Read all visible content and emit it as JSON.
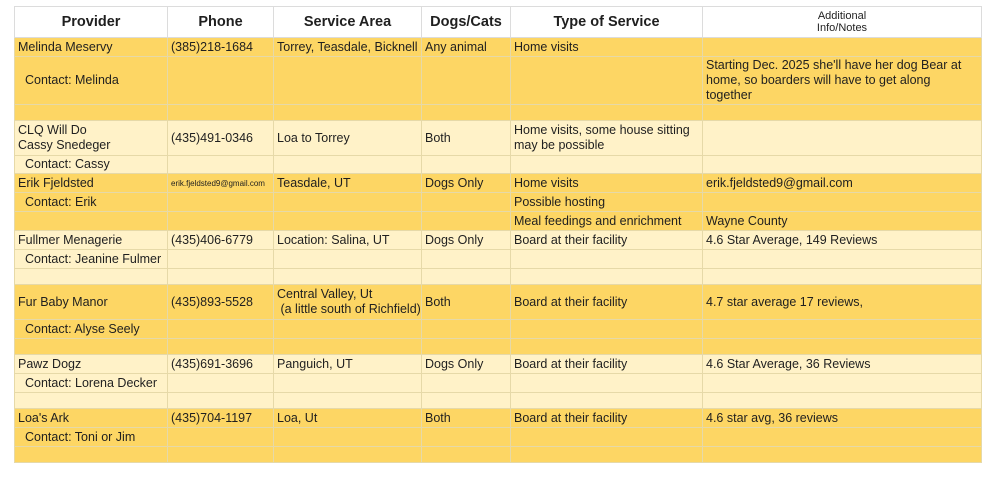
{
  "header": {
    "provider": "Provider",
    "phone": "Phone",
    "service_area": "Service Area",
    "dogs_cats": "Dogs/Cats",
    "type_of_service": "Type of Service",
    "notes_line1": "Additional",
    "notes_line2": "Info/Notes"
  },
  "rows": [
    {
      "shade": "dark",
      "h": 19,
      "provider": "Melinda Meservy",
      "phone": "(385)218-1684",
      "area": "Torrey, Teasdale, Bicknell",
      "pets": "Any animal",
      "service": "Home visits",
      "notes": ""
    },
    {
      "shade": "dark",
      "h": 48,
      "provider": "Contact: Melinda",
      "indent": true,
      "phone": "",
      "area": "",
      "pets": "",
      "service": "",
      "notes": "Starting Dec. 2025 she'll have her dog Bear at home, so boarders will have to get along together"
    },
    {
      "shade": "dark",
      "h": 16,
      "provider": "",
      "phone": "",
      "area": "",
      "pets": "",
      "service": "",
      "notes": ""
    },
    {
      "shade": "light",
      "h": 35,
      "provider": "CLQ Will Do\nCassy Snedeger",
      "phone": "(435)491-0346",
      "area": "Loa to Torrey",
      "pets": "Both",
      "service": "Home visits, some house sitting may be possible",
      "notes": ""
    },
    {
      "shade": "light",
      "h": 18,
      "provider": "Contact: Cassy",
      "indent": true,
      "phone": "",
      "area": "",
      "pets": "",
      "service": "",
      "notes": ""
    },
    {
      "shade": "dark",
      "h": 19,
      "provider": "Erik Fjeldsted",
      "phone": "erik.fjeldsted9@gmail.com",
      "phone_small": true,
      "area": "Teasdale, UT",
      "pets": "Dogs Only",
      "service": "Home visits",
      "notes": "erik.fjeldsted9@gmail.com"
    },
    {
      "shade": "dark",
      "h": 19,
      "provider": "Contact: Erik",
      "indent": true,
      "phone": "",
      "area": "",
      "pets": "",
      "service": "Possible hosting",
      "notes": ""
    },
    {
      "shade": "dark",
      "h": 19,
      "provider": "",
      "phone": "",
      "area": "",
      "pets": "",
      "service": "Meal feedings and enrichment",
      "notes": "Wayne County"
    },
    {
      "shade": "light",
      "h": 19,
      "provider": "Fullmer Menagerie",
      "phone": "(435)406-6779",
      "area": "Location: Salina, UT",
      "pets": "Dogs Only",
      "service": "Board at their facility",
      "notes": "4.6 Star Average, 149 Reviews"
    },
    {
      "shade": "light",
      "h": 19,
      "provider": "Contact: Jeanine Fulmer",
      "indent": true,
      "phone": "",
      "area": "",
      "pets": "",
      "service": "",
      "notes": ""
    },
    {
      "shade": "light",
      "h": 16,
      "provider": "",
      "phone": "",
      "area": "",
      "pets": "",
      "service": "",
      "notes": ""
    },
    {
      "shade": "dark",
      "h": 35,
      "provider": "Fur Baby Manor",
      "phone": "(435)893-5528",
      "area": "Central Valley, Ut\n (a little south of Richfield)",
      "pets": "Both",
      "service": "Board at their facility",
      "notes": "4.7 star average 17 reviews,"
    },
    {
      "shade": "dark",
      "h": 19,
      "provider": "Contact: Alyse Seely",
      "indent": true,
      "phone": "",
      "area": "",
      "pets": "",
      "service": "",
      "notes": ""
    },
    {
      "shade": "dark",
      "h": 16,
      "provider": "",
      "phone": "",
      "area": "",
      "pets": "",
      "service": "",
      "notes": ""
    },
    {
      "shade": "light",
      "h": 19,
      "provider": "Pawz Dogz",
      "phone": "(435)691-3696",
      "area": "Panguich, UT",
      "pets": "Dogs Only",
      "service": "Board at their facility",
      "notes": "4.6 Star Average, 36 Reviews"
    },
    {
      "shade": "light",
      "h": 19,
      "provider": "Contact: Lorena Decker",
      "indent": true,
      "phone": "",
      "area": "",
      "pets": "",
      "service": "",
      "notes": ""
    },
    {
      "shade": "light",
      "h": 16,
      "provider": "",
      "phone": "",
      "area": "",
      "pets": "",
      "service": "",
      "notes": ""
    },
    {
      "shade": "dark",
      "h": 19,
      "provider": "Loa's Ark",
      "phone": "(435)704-1197",
      "area": "Loa, Ut",
      "pets": "Both",
      "service": "Board at their facility",
      "notes": "4.6 star avg, 36 reviews"
    },
    {
      "shade": "dark",
      "h": 19,
      "provider": "Contact: Toni or Jim",
      "indent": true,
      "phone": "",
      "area": "",
      "pets": "",
      "service": "",
      "notes": ""
    },
    {
      "shade": "dark",
      "h": 16,
      "provider": "",
      "phone": "",
      "area": "",
      "pets": "",
      "service": "",
      "notes": ""
    }
  ]
}
